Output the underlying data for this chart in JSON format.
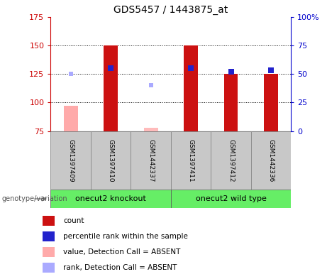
{
  "title": "GDS5457 / 1443875_at",
  "samples": [
    "GSM1397409",
    "GSM1397410",
    "GSM1442337",
    "GSM1397411",
    "GSM1397412",
    "GSM1442336"
  ],
  "bar_values": [
    97,
    150,
    78,
    150,
    125,
    125
  ],
  "bar_colors": [
    "#ffaaaa",
    "#cc1111",
    "#ffbbbb",
    "#cc1111",
    "#cc1111",
    "#cc1111"
  ],
  "dot_values": [
    125,
    130,
    115,
    130,
    127,
    128
  ],
  "dot_colors": [
    "#aaaaff",
    "#2222cc",
    "#aaaaff",
    "#2222cc",
    "#2222cc",
    "#2222cc"
  ],
  "absent_flags": [
    true,
    false,
    true,
    false,
    false,
    false
  ],
  "ylim_left": [
    75,
    175
  ],
  "ylim_right": [
    0,
    100
  ],
  "yticks_left": [
    75,
    100,
    125,
    150,
    175
  ],
  "yticks_right": [
    0,
    25,
    50,
    75,
    100
  ],
  "ytick_labels_left": [
    "75",
    "100",
    "125",
    "150",
    "175"
  ],
  "ytick_labels_right": [
    "0",
    "25",
    "50",
    "75",
    "100%"
  ],
  "hgrid_vals": [
    100,
    125,
    150
  ],
  "groups": [
    {
      "label": "onecut2 knockout",
      "start": 0,
      "end": 2
    },
    {
      "label": "onecut2 wild type",
      "start": 3,
      "end": 5
    }
  ],
  "group_color": "#66ee66",
  "group_label": "genotype/variation",
  "legend_items": [
    {
      "label": "count",
      "color": "#cc1111"
    },
    {
      "label": "percentile rank within the sample",
      "color": "#2222cc"
    },
    {
      "label": "value, Detection Call = ABSENT",
      "color": "#ffaaaa"
    },
    {
      "label": "rank, Detection Call = ABSENT",
      "color": "#aaaaff"
    }
  ],
  "bar_width": 0.35,
  "left_axis_color": "#cc0000",
  "right_axis_color": "#0000cc",
  "sample_box_color": "#c8c8c8",
  "sample_box_edge": "#888888"
}
